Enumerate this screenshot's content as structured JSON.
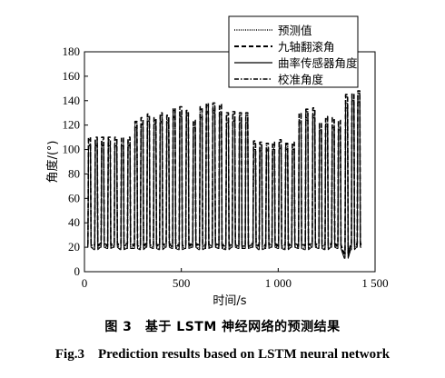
{
  "caption": {
    "cn": "图 3　基于 LSTM 神经网络的预测结果",
    "en": "Fig.3　Prediction results based on LSTM neural network"
  },
  "chart_data": {
    "type": "line",
    "xlabel": "时间/s",
    "ylabel": "角度/(°)",
    "xlim": [
      0,
      1500
    ],
    "ylim": [
      0,
      180
    ],
    "x_ticks": [
      0,
      500,
      1000,
      1500
    ],
    "x_tick_labels": [
      "0",
      "500",
      "1 000",
      "1 500"
    ],
    "y_ticks": [
      0,
      20,
      40,
      60,
      80,
      100,
      120,
      140,
      160,
      180
    ],
    "y_tick_labels": [
      "0",
      "20",
      "40",
      "60",
      "80",
      "100",
      "120",
      "140",
      "160",
      "180"
    ],
    "legend_position": "top-right",
    "grid": false,
    "cycle_times": [
      18,
      53,
      86,
      120,
      154,
      188,
      222,
      258,
      289,
      322,
      356,
      388,
      422,
      455,
      489,
      523,
      559,
      594,
      626,
      660,
      694,
      730,
      763,
      797,
      830,
      870,
      902,
      936,
      968,
      1002,
      1036,
      1070,
      1105,
      1140,
      1176,
      1210,
      1242,
      1276,
      1308,
      1345,
      1378,
      1408
    ],
    "series": [
      {
        "name": "预测值",
        "line_style": "dotted",
        "peaks": [
          104,
          104,
          104,
          104,
          104,
          104,
          104,
          120,
          121,
          124,
          122,
          123,
          124,
          127,
          128,
          130,
          120,
          128,
          131,
          132,
          131,
          124,
          124,
          124,
          124,
          102,
          101,
          100,
          101,
          102,
          101,
          101,
          124,
          126,
          128,
          118,
          121,
          120,
          118,
          138,
          142,
          141
        ],
        "troughs": [
          21,
          19,
          21,
          20,
          21,
          19,
          20,
          20,
          19,
          21,
          20,
          19,
          21,
          20,
          19,
          20,
          21,
          19,
          20,
          21,
          20,
          19,
          21,
          20,
          20,
          21,
          19,
          20,
          21,
          20,
          19,
          21,
          20,
          19,
          21,
          20,
          19,
          21,
          20,
          12,
          19,
          21
        ]
      },
      {
        "name": "九轴翻滚角",
        "line_style": "dashed",
        "peaks": [
          110,
          110,
          110,
          110,
          110,
          110,
          110,
          123,
          126,
          129,
          126,
          130,
          128,
          134,
          135,
          132,
          124,
          135,
          138,
          138,
          137,
          130,
          131,
          130,
          130,
          107,
          106,
          105,
          106,
          108,
          105,
          106,
          130,
          133,
          134,
          122,
          127,
          126,
          124,
          145,
          146,
          148
        ],
        "troughs": [
          23,
          22,
          23,
          22,
          23,
          22,
          23,
          22,
          22,
          23,
          22,
          22,
          23,
          22,
          22,
          22,
          23,
          22,
          22,
          23,
          22,
          22,
          23,
          22,
          22,
          23,
          22,
          22,
          23,
          22,
          22,
          23,
          22,
          22,
          23,
          22,
          22,
          23,
          22,
          15,
          22,
          23
        ]
      },
      {
        "name": "曲率传感器角度",
        "line_style": "solid",
        "peaks": [
          103,
          103,
          103,
          103,
          103,
          103,
          103,
          118,
          120,
          123,
          121,
          122,
          122,
          126,
          127,
          128,
          118,
          126,
          130,
          130,
          129,
          122,
          123,
          122,
          122,
          100,
          99,
          99,
          100,
          101,
          100,
          100,
          122,
          124,
          126,
          116,
          119,
          118,
          116,
          134,
          140,
          139
        ],
        "troughs": [
          20,
          18,
          20,
          19,
          20,
          18,
          19,
          19,
          18,
          20,
          19,
          18,
          20,
          19,
          18,
          19,
          20,
          18,
          19,
          20,
          19,
          18,
          20,
          19,
          19,
          20,
          18,
          19,
          20,
          19,
          18,
          20,
          19,
          18,
          20,
          19,
          18,
          20,
          19,
          11,
          18,
          20
        ]
      },
      {
        "name": "校准角度",
        "line_style": "dash-dot",
        "peaks": [
          108,
          108,
          108,
          108,
          108,
          108,
          108,
          122,
          124,
          127,
          124,
          128,
          127,
          132,
          133,
          131,
          122,
          133,
          136,
          136,
          135,
          128,
          129,
          128,
          128,
          105,
          104,
          103,
          104,
          106,
          104,
          104,
          128,
          131,
          132,
          120,
          125,
          124,
          122,
          143,
          145,
          146
        ],
        "troughs": [
          22,
          21,
          22,
          21,
          22,
          21,
          22,
          21,
          21,
          22,
          21,
          21,
          22,
          21,
          21,
          21,
          22,
          21,
          21,
          22,
          21,
          21,
          22,
          21,
          21,
          22,
          21,
          21,
          22,
          21,
          21,
          22,
          21,
          21,
          22,
          21,
          21,
          22,
          21,
          14,
          21,
          22
        ]
      }
    ]
  }
}
